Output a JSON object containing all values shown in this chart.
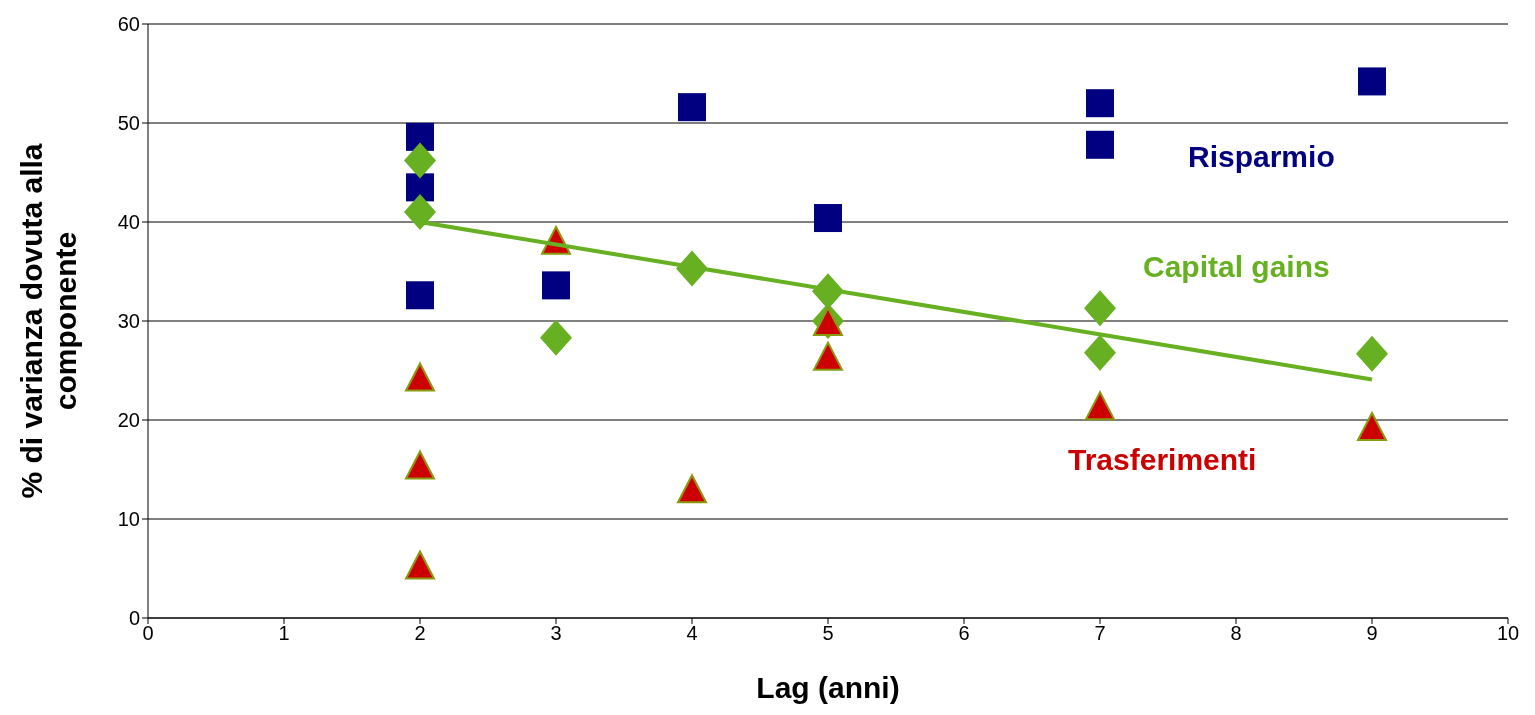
{
  "chart_data": {
    "type": "scatter",
    "xlabel": "Lag (anni)",
    "ylabel": "% di varianza dovuta alla componente",
    "xlim": [
      0,
      10
    ],
    "xticks": [
      0,
      1,
      2,
      3,
      4,
      5,
      6,
      7,
      8,
      9,
      10
    ],
    "ylim": [
      0,
      60
    ],
    "yticks": [
      0,
      10,
      20,
      30,
      40,
      50,
      60
    ],
    "grid": "y",
    "legend": false,
    "series": [
      {
        "name": "Risparmio",
        "color": "#000080",
        "marker": "square",
        "x": [
          2,
          2,
          2,
          3,
          4,
          5,
          7,
          7,
          9
        ],
        "values": [
          48.6,
          43.5,
          32.6,
          33.6,
          51.6,
          40.4,
          52.0,
          47.8,
          54.2
        ]
      },
      {
        "name": "Capital gains",
        "color": "#66b022",
        "marker": "diamond",
        "x": [
          2,
          2,
          3,
          4,
          5,
          5,
          7,
          7,
          9
        ],
        "values": [
          46.2,
          41.0,
          28.3,
          35.3,
          33.0,
          30.0,
          31.3,
          26.8,
          26.7
        ]
      },
      {
        "name": "Trasferimenti",
        "color": "#cc0000",
        "marker": "triangle",
        "x": [
          2,
          2,
          2,
          3,
          4,
          5,
          5,
          7,
          9
        ],
        "values": [
          24.2,
          15.3,
          5.2,
          38.0,
          12.9,
          29.8,
          26.3,
          21.3,
          19.2
        ]
      },
      {
        "type": "line",
        "color": "#66b022",
        "marker": "none",
        "x": [
          2,
          9
        ],
        "values": [
          40.0,
          24.1
        ]
      }
    ]
  }
}
